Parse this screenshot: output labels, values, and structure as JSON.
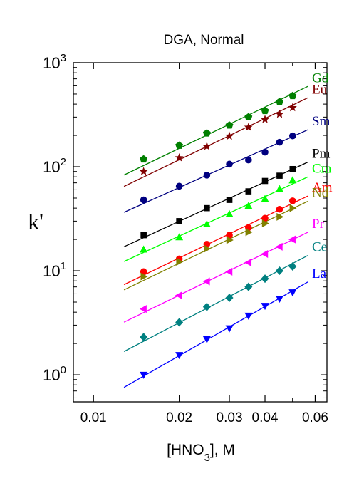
{
  "chart_data": {
    "type": "scatter",
    "title": "DGA, Normal",
    "xlabel_main": "[HNO",
    "xlabel_sub": "3",
    "xlabel_tail": "], M",
    "ylabel": "k'",
    "x_scale": "log",
    "y_scale": "log",
    "xlim": [
      0.0085,
      0.066
    ],
    "ylim": [
      0.55,
      1000
    ],
    "x_ticks": [
      {
        "value": 0.01,
        "label": "0.01"
      },
      {
        "value": 0.02,
        "label": "0.02"
      },
      {
        "value": 0.03,
        "label": "0.03"
      },
      {
        "value": 0.04,
        "label": "0.04"
      },
      {
        "value": 0.06,
        "label": "0.06"
      }
    ],
    "x_minor_ticks": [
      0.05
    ],
    "y_ticks": [
      {
        "value": 1,
        "base": "10",
        "exp": "0"
      },
      {
        "value": 10,
        "base": "10",
        "exp": "1"
      },
      {
        "value": 100,
        "base": "10",
        "exp": "2"
      },
      {
        "value": 1000,
        "base": "10",
        "exp": "3"
      }
    ],
    "grid": false,
    "legend": "none",
    "fit_x_range": [
      0.0128,
      0.0565
    ],
    "series": [
      {
        "name": "Gd",
        "color": "#008000",
        "marker": "pentagon",
        "slope": 1.32,
        "x": [
          0.015,
          0.02,
          0.025,
          0.03,
          0.035,
          0.04,
          0.045,
          0.05
        ],
        "y": [
          118,
          160,
          210,
          250,
          300,
          345,
          420,
          480
        ]
      },
      {
        "name": "Eu",
        "color": "#800000",
        "marker": "star",
        "slope": 1.32,
        "x": [
          0.015,
          0.02,
          0.025,
          0.03,
          0.035,
          0.04,
          0.045,
          0.05
        ],
        "y": [
          90,
          122,
          157,
          197,
          240,
          285,
          320,
          370
        ]
      },
      {
        "name": "Sm",
        "color": "#000080",
        "marker": "circle",
        "slope": 1.23,
        "x": [
          0.015,
          0.02,
          0.025,
          0.03,
          0.035,
          0.04,
          0.045,
          0.05
        ],
        "y": [
          48,
          65,
          83,
          106,
          116,
          138,
          172,
          198
        ]
      },
      {
        "name": "Pm",
        "color": "#000000",
        "marker": "square",
        "slope": 1.26,
        "x": [
          0.015,
          0.02,
          0.025,
          0.03,
          0.035,
          0.04,
          0.045,
          0.05
        ],
        "y": [
          22,
          30,
          40,
          48,
          58,
          73,
          82,
          95
        ]
      },
      {
        "name": "Cm",
        "color": "#00ff00",
        "marker": "triangle-up",
        "slope": 1.26,
        "x": [
          0.015,
          0.02,
          0.025,
          0.03,
          0.035,
          0.04,
          0.045,
          0.05
        ],
        "y": [
          16,
          21,
          28,
          35,
          42,
          49,
          61,
          74
        ]
      },
      {
        "name": "Am",
        "color": "#ff0000",
        "marker": "circle",
        "slope": 1.32,
        "x": [
          0.015,
          0.02,
          0.025,
          0.03,
          0.035,
          0.04,
          0.045,
          0.05
        ],
        "y": [
          9.8,
          13,
          18,
          22,
          26,
          32,
          39,
          47
        ]
      },
      {
        "name": "Nd",
        "color": "#808000",
        "marker": "triangle-right",
        "slope": 1.32,
        "x": [
          0.015,
          0.02,
          0.025,
          0.03,
          0.035,
          0.04,
          0.045,
          0.05
        ],
        "y": [
          8.8,
          12.2,
          16.3,
          19.7,
          23.5,
          28.5,
          33,
          40
        ]
      },
      {
        "name": "Pr",
        "color": "#ff00ff",
        "marker": "triangle-left",
        "slope": 1.34,
        "x": [
          0.015,
          0.02,
          0.025,
          0.03,
          0.035,
          0.04,
          0.045,
          0.05
        ],
        "y": [
          4.3,
          5.8,
          7.9,
          9.8,
          12,
          14.5,
          17,
          20
        ]
      },
      {
        "name": "Ce",
        "color": "#008080",
        "marker": "diamond",
        "slope": 1.43,
        "x": [
          0.015,
          0.02,
          0.025,
          0.03,
          0.035,
          0.04,
          0.045,
          0.05
        ],
        "y": [
          2.3,
          3.2,
          4.5,
          5.5,
          7.0,
          8.4,
          10,
          11
        ]
      },
      {
        "name": "La",
        "color": "#0000ff",
        "marker": "triangle-down",
        "slope": 1.57,
        "x": [
          0.015,
          0.02,
          0.025,
          0.03,
          0.035,
          0.04,
          0.045,
          0.05
        ],
        "y": [
          1.0,
          1.55,
          2.2,
          2.8,
          3.7,
          4.6,
          5.4,
          6.2
        ]
      }
    ]
  }
}
